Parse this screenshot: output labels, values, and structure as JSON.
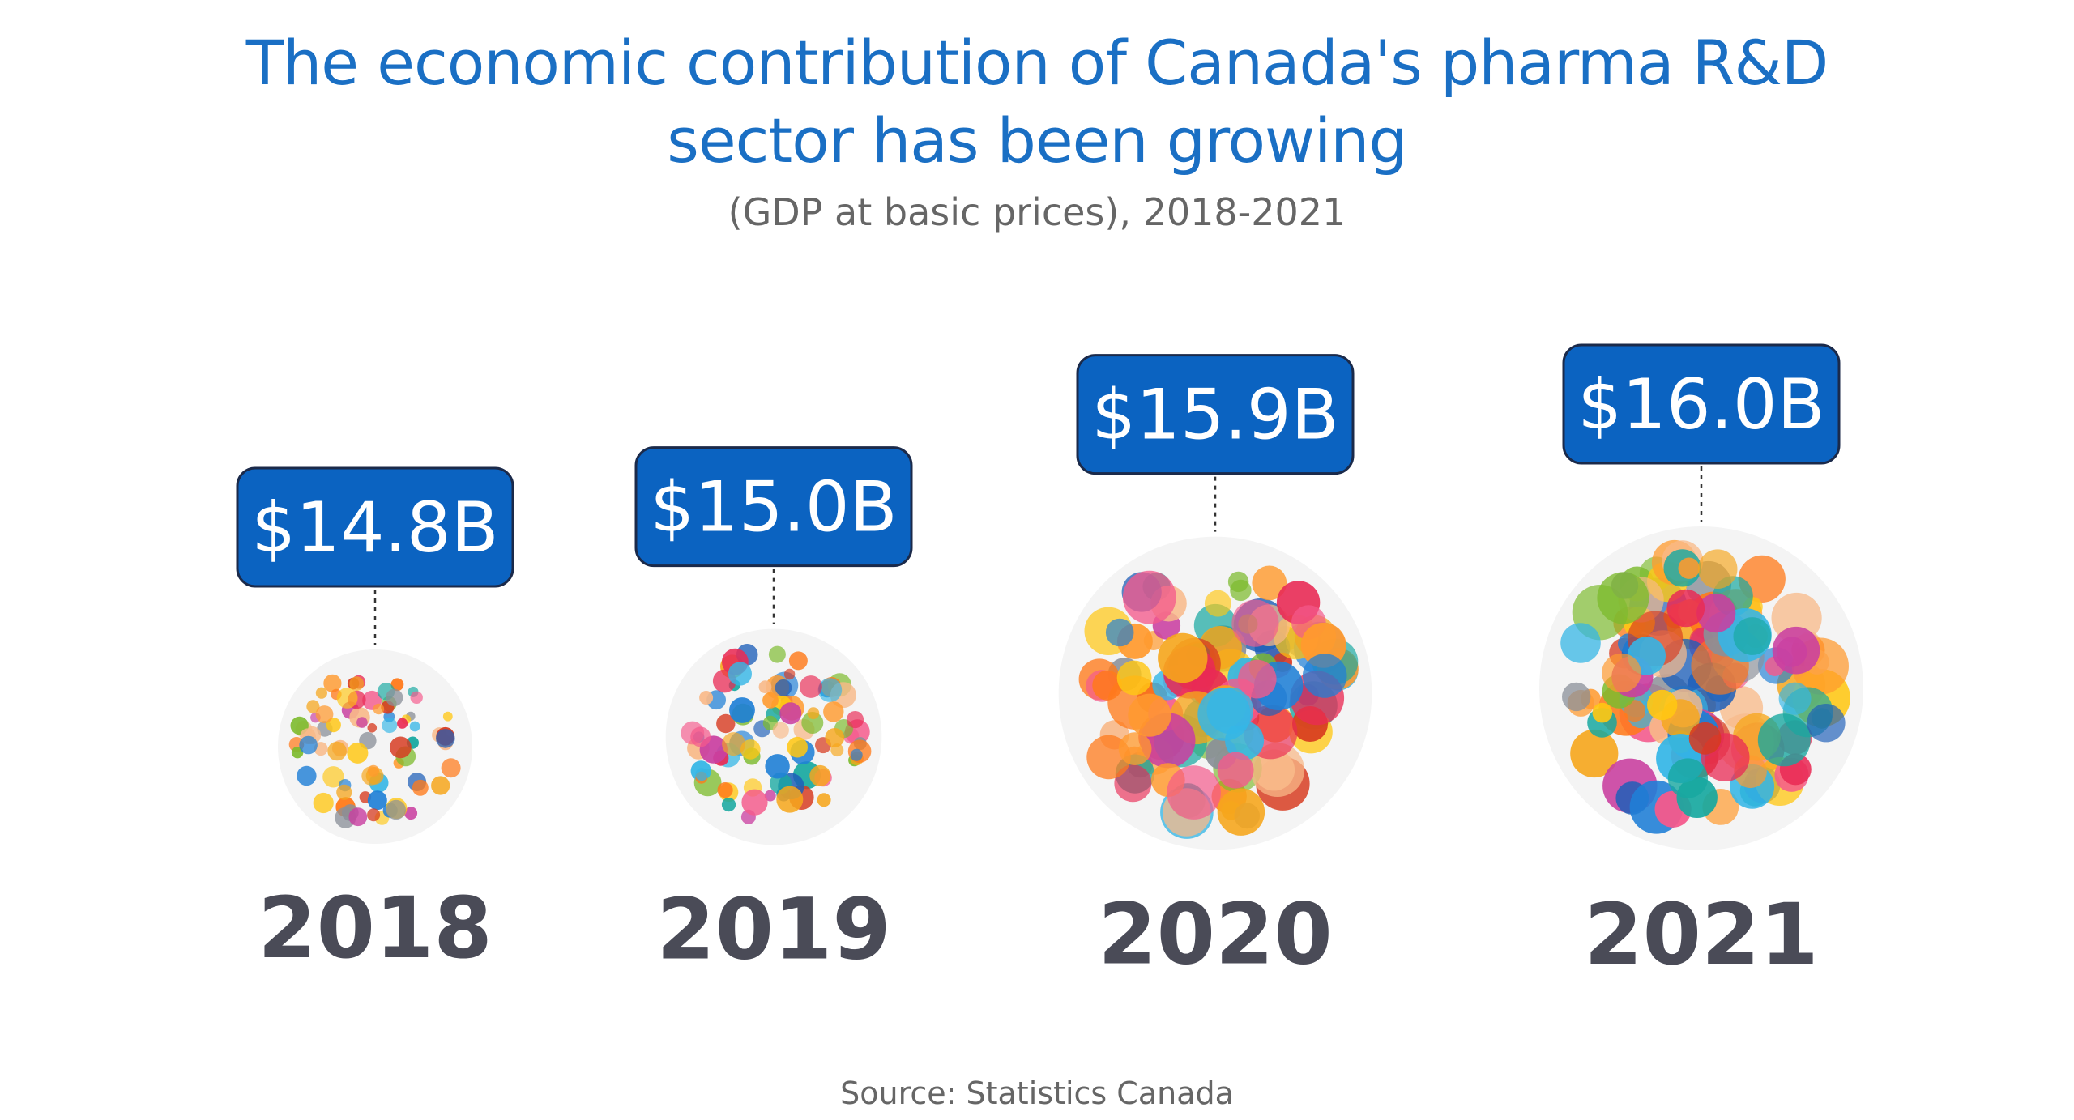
{
  "chart_data": {
    "type": "bubble",
    "title_lines": [
      "The economic contribution of Canada's pharma R&D",
      "sector has been growing"
    ],
    "subtitle": "(GDP at basic prices), 2018-2021",
    "source": "Source: Statistics Canada",
    "categories": [
      "2018",
      "2019",
      "2020",
      "2021"
    ],
    "value_labels": [
      "$14.8B",
      "$15.0B",
      "$15.9B",
      "$16.0B"
    ],
    "values": [
      14.8,
      15.0,
      15.9,
      16.0
    ],
    "unit": "B",
    "colors": {
      "title": "#1a6fc4",
      "value_box_fill": "#0b63c1",
      "value_box_stroke": "#1b2a4a",
      "value_box_text": "#ffffff",
      "year_text": "#4a4b57",
      "bubble_background": "#f4f4f4",
      "connector": "#333333",
      "palette": [
        "#f6a61c",
        "#ff9a2e",
        "#f45a8c",
        "#e92b55",
        "#1f7fd6",
        "#1e5fb8",
        "#ffc713",
        "#7dbb2e",
        "#17a8a0",
        "#8a8f98",
        "#f8b988",
        "#ff7a1a",
        "#d73a1f",
        "#35b6e6",
        "#c93fa0"
      ]
    }
  }
}
